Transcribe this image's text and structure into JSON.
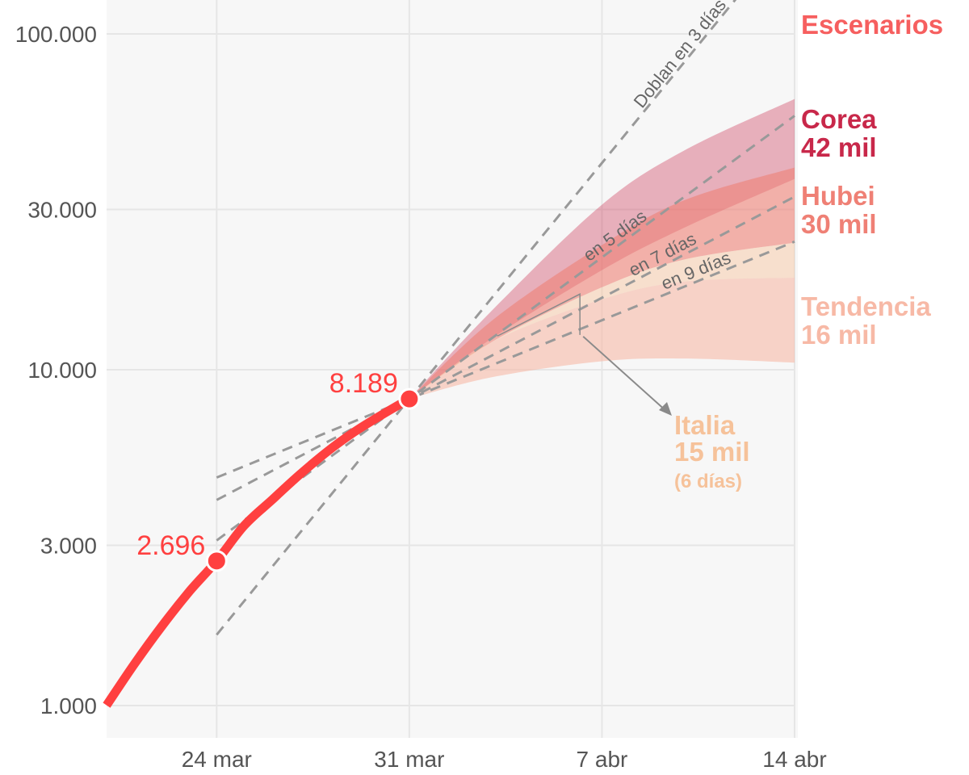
{
  "chart_data": {
    "type": "line",
    "title": "",
    "xlabel": "",
    "ylabel": "",
    "y_scale": "log",
    "ylim": [
      1000,
      100000
    ],
    "xlim": [
      "2020-03-20",
      "2020-04-14"
    ],
    "x_ticks": [
      {
        "date": "2020-03-24",
        "label": "24 mar"
      },
      {
        "date": "2020-03-31",
        "label": "31 mar"
      },
      {
        "date": "2020-04-07",
        "label": "7 abr"
      },
      {
        "date": "2020-04-14",
        "label": "14 abr"
      }
    ],
    "y_ticks": [
      {
        "value": 1000,
        "label": "1.000"
      },
      {
        "value": 3000,
        "label": "3.000"
      },
      {
        "value": 10000,
        "label": "10.000"
      },
      {
        "value": 30000,
        "label": "30.000"
      },
      {
        "value": 100000,
        "label": "100.000"
      }
    ],
    "grid": true,
    "colors": {
      "observed": "#ff4040",
      "corea": "#c8284a",
      "hubei": "#ef8075",
      "tendencia": "#f7b9a6",
      "italia": "#f6c29a",
      "escenarios": "#f65f5f",
      "reference": "#999999"
    },
    "series": [
      {
        "x": [
          "2020-03-20",
          "2020-03-21",
          "2020-03-22",
          "2020-03-23",
          "2020-03-24",
          "2020-03-25",
          "2020-03-26",
          "2020-03-27",
          "2020-03-28",
          "2020-03-29",
          "2020-03-30",
          "2020-03-31"
        ],
        "values": [
          1002,
          1326,
          1720,
          2182,
          2696,
          3434,
          4089,
          4858,
          5690,
          6528,
          7340,
          8189
        ],
        "color": "#ff4040"
      }
    ],
    "highlights": [
      {
        "date": "2020-03-24",
        "value": 2696,
        "label": "2.696"
      },
      {
        "date": "2020-03-31",
        "value": 8189,
        "label": "8.189"
      }
    ],
    "doubling_lines": [
      {
        "label": "Doblan en 3 días",
        "days": 3,
        "from": "2020-03-24",
        "to": "2020-04-12"
      },
      {
        "label": "en 5 días",
        "days": 5,
        "from": "2020-03-24",
        "to": "2020-04-14"
      },
      {
        "label": "en 7 días",
        "days": 7,
        "from": "2020-03-24",
        "to": "2020-04-14"
      },
      {
        "label": "en 9 días",
        "days": 9,
        "from": "2020-03-24",
        "to": "2020-04-14"
      }
    ],
    "scenarios_title": "Escenarios",
    "scenarios": [
      {
        "name": "Corea",
        "value_label": "42 mil",
        "x": [
          "2020-03-31",
          "2020-04-03",
          "2020-04-07",
          "2020-04-10",
          "2020-04-14"
        ],
        "upper": [
          8189,
          15000,
          31000,
          45000,
          64000
        ],
        "lower": [
          8189,
          12400,
          19800,
          26500,
          37000
        ]
      },
      {
        "name": "Hubei",
        "value_label": "30 mil",
        "x": [
          "2020-03-31",
          "2020-04-03",
          "2020-04-07",
          "2020-04-10",
          "2020-04-14"
        ],
        "upper": [
          8189,
          14000,
          23500,
          32000,
          40000
        ],
        "lower": [
          8189,
          12100,
          17600,
          21300,
          23900
        ]
      },
      {
        "name": "Tendencia",
        "value_label": "16 mil",
        "x": [
          "2020-03-31",
          "2020-04-03",
          "2020-04-07",
          "2020-04-10",
          "2020-04-14"
        ],
        "upper": [
          8189,
          12100,
          16200,
          18300,
          18800
        ],
        "lower": [
          8189,
          9500,
          10600,
          10800,
          10500
        ]
      }
    ],
    "annotation": {
      "name": "Italia",
      "value_label": "15 mil",
      "note": "(6 días)"
    }
  }
}
